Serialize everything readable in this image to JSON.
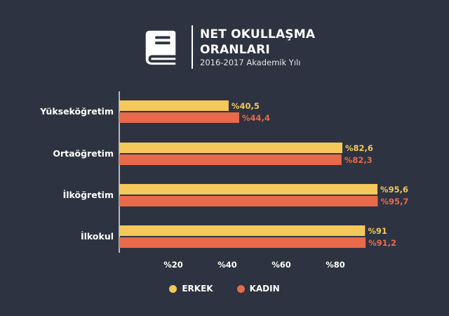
{
  "header": {
    "title_line1": "NET OKULLAŞMA",
    "title_line2": "ORANLARI",
    "subtitle": "2016-2017 Akademik Yılı",
    "icon": "book-icon"
  },
  "colors": {
    "background": "#2e3341",
    "erkek": "#f4c85a",
    "kadin": "#e86a4b",
    "text": "#ffffff"
  },
  "chart_data": {
    "type": "bar",
    "orientation": "horizontal",
    "categories": [
      "Yükseköğretim",
      "Ortaöğretim",
      "İlköğretim",
      "İlkokul"
    ],
    "series": [
      {
        "name": "ERKEK",
        "values": [
          40.5,
          82.6,
          95.6,
          91
        ],
        "labels": [
          "%40,5",
          "%82,6",
          "%95,6",
          "%91"
        ]
      },
      {
        "name": "KADIN",
        "values": [
          44.4,
          82.3,
          95.7,
          91.2
        ],
        "labels": [
          "%44,4",
          "%82,3",
          "%95,7",
          "%91,2"
        ]
      }
    ],
    "xticks": [
      20,
      40,
      60,
      80
    ],
    "xtick_labels": [
      "%20",
      "%40",
      "%60",
      "%80"
    ],
    "xlim": [
      0,
      100
    ],
    "grid": false,
    "legend_position": "bottom-center"
  }
}
